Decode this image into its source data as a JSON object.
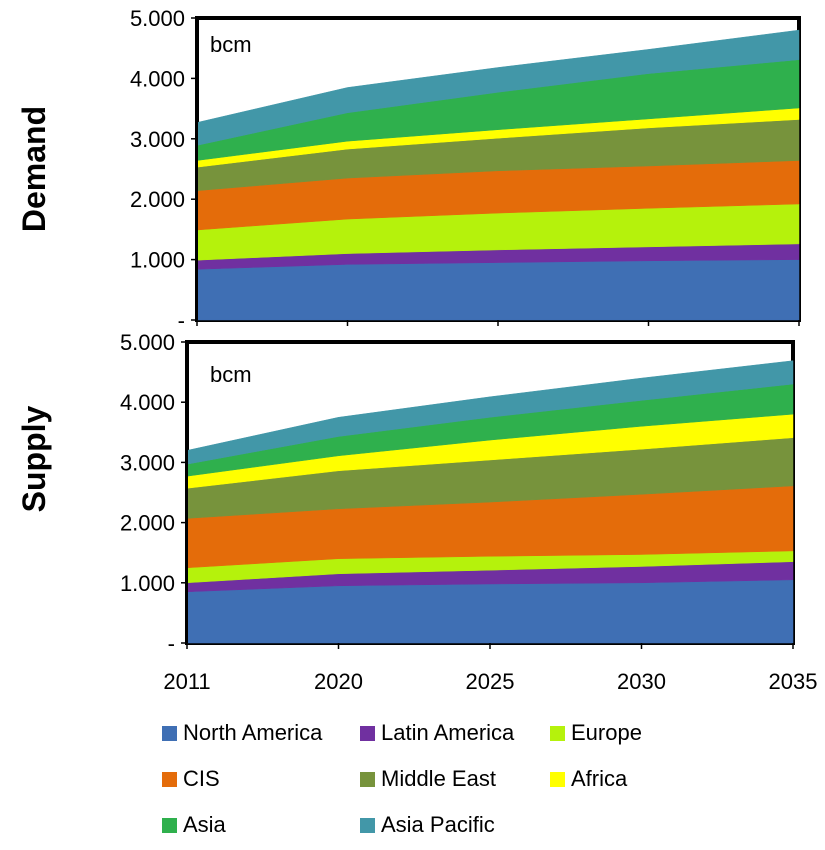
{
  "chart_data": [
    {
      "type": "area",
      "stacked": true,
      "row_label": "Demand",
      "unit_label": "bcm",
      "x": [
        "2011",
        "2020",
        "2025",
        "2030",
        "2035"
      ],
      "y_ticks": [
        "-",
        "1.000",
        "2.000",
        "3.000",
        "4.000",
        "5.000"
      ],
      "ylim": [
        0,
        5000
      ],
      "series": [
        {
          "name": "North America",
          "color": "#3f6fb4",
          "values": [
            840,
            920,
            950,
            980,
            1000
          ]
        },
        {
          "name": "Latin America",
          "color": "#7030a0",
          "values": [
            150,
            180,
            210,
            230,
            260
          ]
        },
        {
          "name": "Europe",
          "color": "#b5f20c",
          "values": [
            500,
            570,
            610,
            640,
            660
          ]
        },
        {
          "name": "CIS",
          "color": "#e46c0a",
          "values": [
            650,
            680,
            700,
            700,
            720
          ]
        },
        {
          "name": "Middle East",
          "color": "#77933c",
          "values": [
            390,
            480,
            540,
            630,
            680
          ]
        },
        {
          "name": "Africa",
          "color": "#ffff00",
          "values": [
            110,
            130,
            140,
            150,
            190
          ]
        },
        {
          "name": "Asia",
          "color": "#2fb04d",
          "values": [
            250,
            470,
            620,
            750,
            800
          ]
        },
        {
          "name": "Asia Pacific",
          "color": "#4297a8",
          "values": [
            380,
            420,
            410,
            400,
            490
          ]
        }
      ]
    },
    {
      "type": "area",
      "stacked": true,
      "row_label": "Supply",
      "unit_label": "bcm",
      "x": [
        "2011",
        "2020",
        "2025",
        "2030",
        "2035"
      ],
      "y_ticks": [
        "-",
        "1.000",
        "2.000",
        "3.000",
        "4.000",
        "5.000"
      ],
      "ylim": [
        0,
        5000
      ],
      "series": [
        {
          "name": "North America",
          "color": "#3f6fb4",
          "values": [
            850,
            950,
            980,
            1000,
            1050
          ]
        },
        {
          "name": "Latin America",
          "color": "#7030a0",
          "values": [
            150,
            200,
            230,
            270,
            300
          ]
        },
        {
          "name": "Europe",
          "color": "#b5f20c",
          "values": [
            250,
            250,
            230,
            200,
            180
          ]
        },
        {
          "name": "CIS",
          "color": "#e46c0a",
          "values": [
            820,
            830,
            900,
            1000,
            1080
          ]
        },
        {
          "name": "Middle East",
          "color": "#77933c",
          "values": [
            500,
            630,
            700,
            750,
            800
          ]
        },
        {
          "name": "Africa",
          "color": "#ffff00",
          "values": [
            200,
            250,
            330,
            380,
            390
          ]
        },
        {
          "name": "Asia",
          "color": "#2fb04d",
          "values": [
            200,
            320,
            380,
            430,
            500
          ]
        },
        {
          "name": "Asia Pacific",
          "color": "#4297a8",
          "values": [
            230,
            320,
            340,
            370,
            390
          ]
        }
      ]
    }
  ],
  "legend": [
    {
      "label": "North America",
      "color": "#3f6fb4"
    },
    {
      "label": "Latin America",
      "color": "#7030a0"
    },
    {
      "label": "Europe",
      "color": "#b5f20c"
    },
    {
      "label": "CIS",
      "color": "#e46c0a"
    },
    {
      "label": "Middle East",
      "color": "#77933c"
    },
    {
      "label": "Africa",
      "color": "#ffff00"
    },
    {
      "label": "Asia",
      "color": "#2fb04d"
    },
    {
      "label": "Asia Pacific",
      "color": "#4297a8"
    }
  ]
}
